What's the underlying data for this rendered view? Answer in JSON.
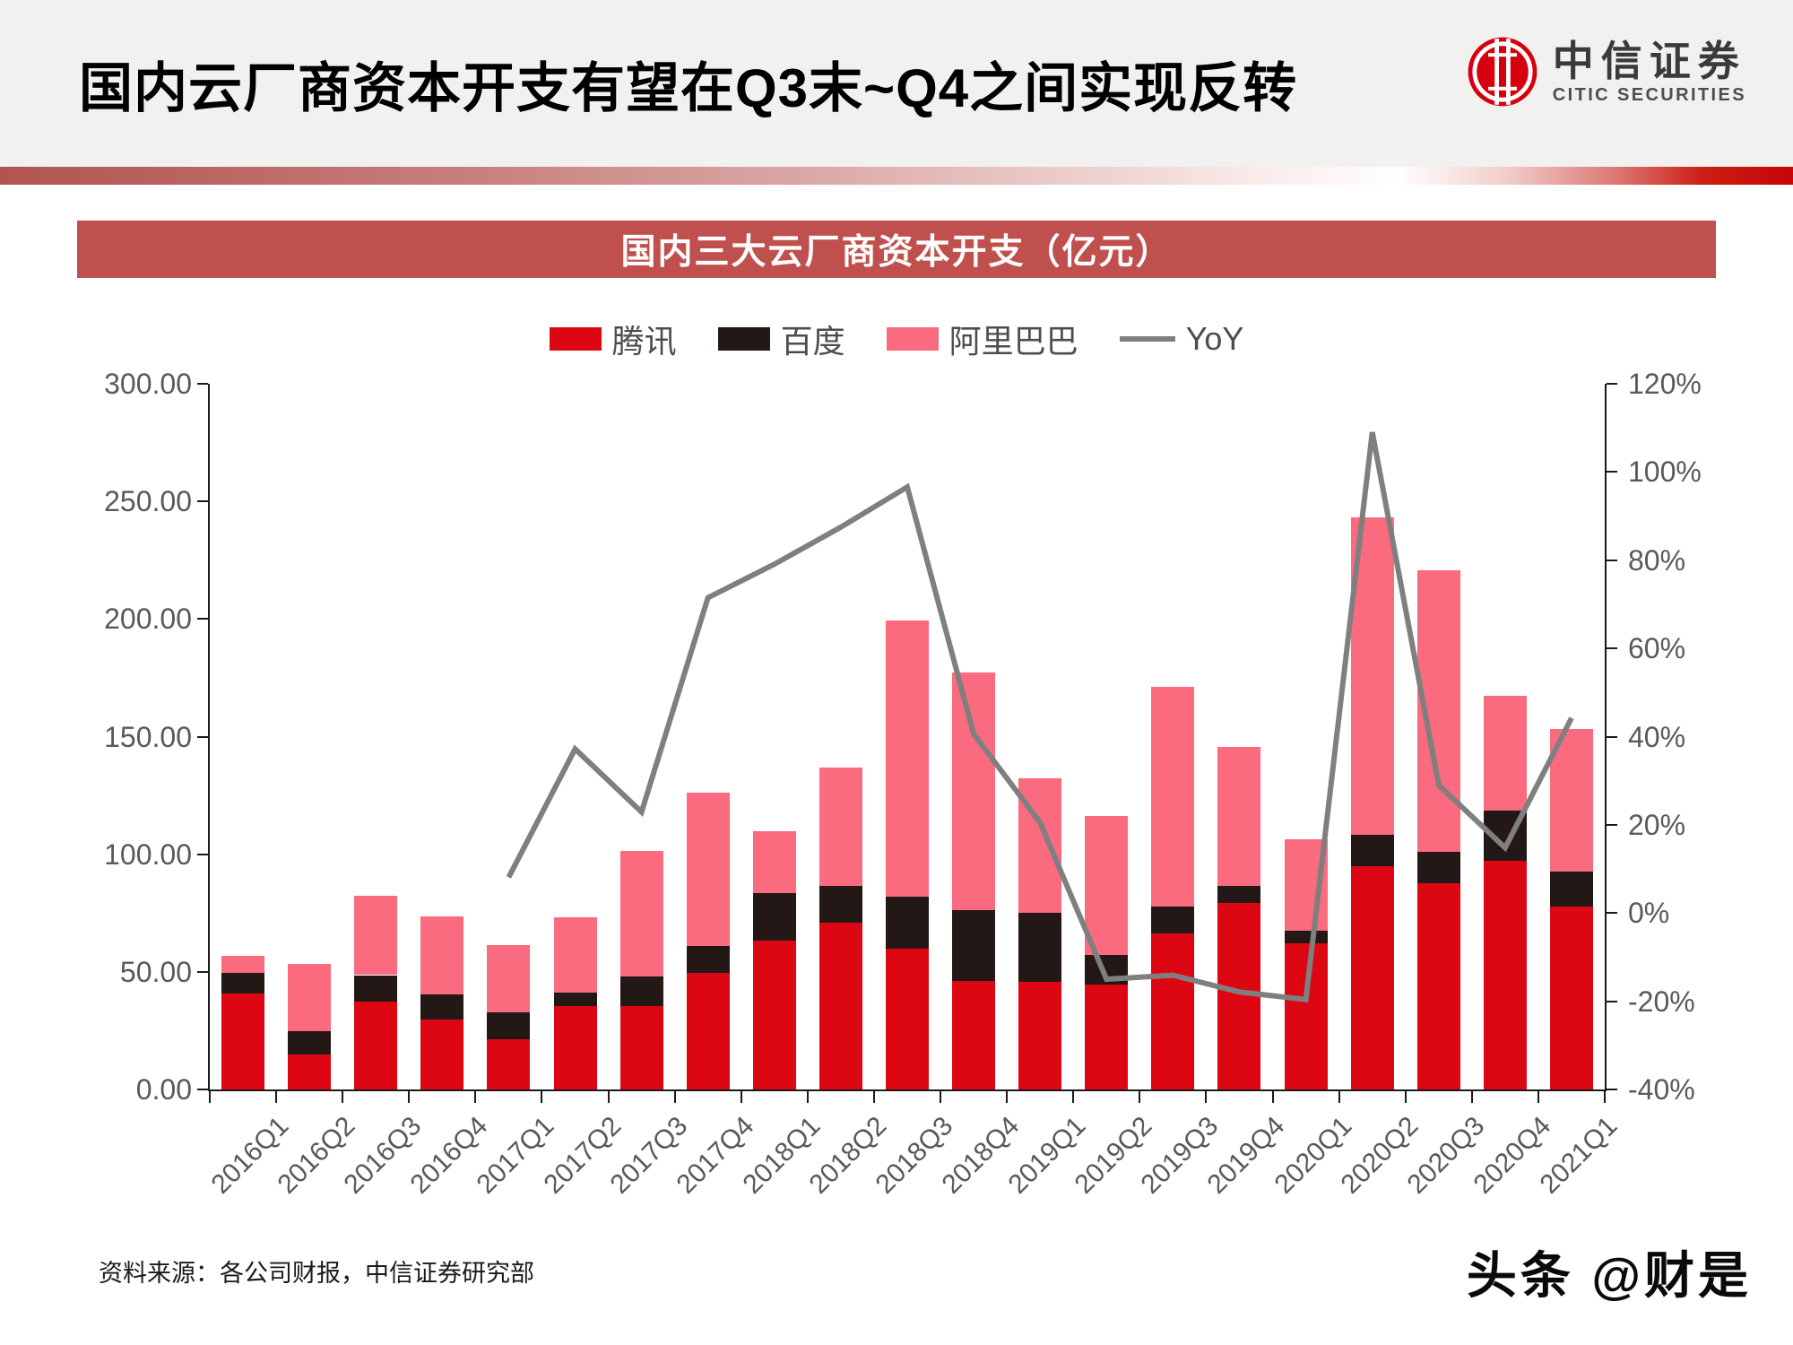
{
  "page": {
    "title": "国内云厂商资本开支有望在Q3末~Q4之间实现反转",
    "banner": "国内三大云厂商资本开支（亿元）",
    "source_note": "资料来源：各公司财报，中信证券研究部",
    "watermark": "头条 @财是"
  },
  "logo": {
    "cn": "中信证券",
    "en": "CITIC SECURITIES",
    "brand_color": "#d6000f"
  },
  "colors": {
    "banner_bg": "#c0504d",
    "header_bg": "#f1f1f0",
    "tencent": "#dc0713",
    "baidu": "#231815",
    "alibaba": "#fa6b7f",
    "yoy_line": "#7f7f7f",
    "axis_text": "#595959",
    "axis_line": "#1a1a1a"
  },
  "chart_data": {
    "type": "bar",
    "subtype": "stacked-bar-with-line",
    "title": "国内三大云厂商资本开支（亿元）",
    "grid": false,
    "legend_position": "top",
    "categories": [
      "2016Q1",
      "2016Q2",
      "2016Q3",
      "2016Q4",
      "2017Q1",
      "2017Q2",
      "2017Q3",
      "2017Q4",
      "2018Q1",
      "2018Q2",
      "2018Q3",
      "2018Q4",
      "2019Q1",
      "2019Q2",
      "2019Q3",
      "2019Q4",
      "2020Q1",
      "2020Q2",
      "2020Q3",
      "2020Q4",
      "2021Q1"
    ],
    "left_axis": {
      "min": 0,
      "max": 300,
      "step": 50,
      "tick_labels": [
        "0.00",
        "50.00",
        "100.00",
        "150.00",
        "200.00",
        "250.00",
        "300.00"
      ]
    },
    "right_axis": {
      "min": -40,
      "max": 120,
      "step": 20,
      "tick_labels": [
        "-40%",
        "-20%",
        "0%",
        "20%",
        "40%",
        "60%",
        "80%",
        "100%",
        "120%"
      ]
    },
    "series": [
      {
        "name": "腾讯",
        "type": "bar",
        "color": "#dc0713",
        "values": [
          40.9,
          15.0,
          37.4,
          29.7,
          21.2,
          35.3,
          35.5,
          49.7,
          63.2,
          71.0,
          59.9,
          46.0,
          45.6,
          44.7,
          66.3,
          79.4,
          62.1,
          94.8,
          87.5,
          97.2,
          77.9
        ]
      },
      {
        "name": "百度",
        "type": "bar",
        "color": "#231815",
        "values": [
          8.8,
          9.7,
          11.2,
          10.8,
          11.6,
          6.0,
          12.5,
          11.3,
          20.2,
          15.4,
          21.9,
          30.4,
          29.6,
          12.4,
          11.6,
          7.0,
          5.4,
          13.5,
          13.5,
          21.5,
          14.6
        ]
      },
      {
        "name": "阿里巴巴",
        "type": "bar",
        "color": "#fa6b7f",
        "values": [
          7.0,
          28.5,
          33.9,
          33.1,
          28.5,
          31.7,
          53.4,
          65.2,
          26.4,
          50.5,
          117.6,
          101.0,
          57.1,
          59.3,
          93.3,
          59.3,
          38.9,
          135.0,
          119.9,
          48.6,
          60.9
        ]
      },
      {
        "name": "YoY",
        "type": "line",
        "color": "#7f7f7f",
        "axis": "right",
        "values": [
          null,
          null,
          null,
          null,
          8.1,
          37.2,
          22.9,
          71.5,
          79.1,
          87.5,
          96.6,
          40.6,
          20.5,
          -15.0,
          -14.1,
          -17.9,
          -19.6,
          109.0,
          29.0,
          14.8,
          44.2
        ]
      }
    ]
  }
}
